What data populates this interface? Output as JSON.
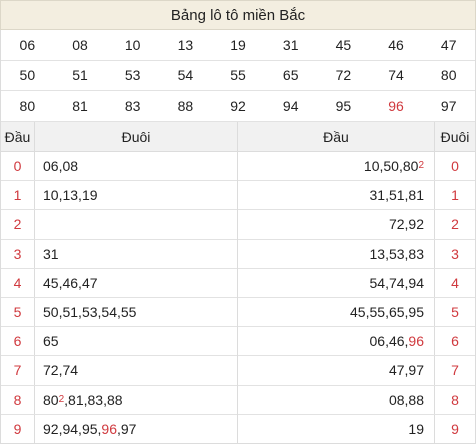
{
  "title": "Bảng lô tô miền Bắc",
  "numbers": [
    [
      "06",
      "08",
      "10",
      "13",
      "19",
      "31",
      "45",
      "46",
      "47"
    ],
    [
      "50",
      "51",
      "53",
      "54",
      "55",
      "65",
      "72",
      "74",
      "80"
    ],
    [
      "80",
      "81",
      "83",
      "88",
      "92",
      "94",
      "95",
      "96",
      "97"
    ]
  ],
  "highlight_numbers": [
    "96"
  ],
  "headers": {
    "dau": "Đầu",
    "duoi": "Đuôi"
  },
  "left_rows": [
    {
      "d": "0",
      "t": [
        {
          "v": "06"
        },
        {
          "v": "08"
        }
      ]
    },
    {
      "d": "1",
      "t": [
        {
          "v": "10"
        },
        {
          "v": "13"
        },
        {
          "v": "19"
        }
      ]
    },
    {
      "d": "2",
      "t": []
    },
    {
      "d": "3",
      "t": [
        {
          "v": "31"
        }
      ]
    },
    {
      "d": "4",
      "t": [
        {
          "v": "45"
        },
        {
          "v": "46"
        },
        {
          "v": "47"
        }
      ]
    },
    {
      "d": "5",
      "t": [
        {
          "v": "50"
        },
        {
          "v": "51"
        },
        {
          "v": "53"
        },
        {
          "v": "54"
        },
        {
          "v": "55"
        }
      ]
    },
    {
      "d": "6",
      "t": [
        {
          "v": "65"
        }
      ]
    },
    {
      "d": "7",
      "t": [
        {
          "v": "72"
        },
        {
          "v": "74"
        }
      ]
    },
    {
      "d": "8",
      "t": [
        {
          "v": "80",
          "sup": "2"
        },
        {
          "v": "81"
        },
        {
          "v": "83"
        },
        {
          "v": "88"
        }
      ]
    },
    {
      "d": "9",
      "t": [
        {
          "v": "92"
        },
        {
          "v": "94"
        },
        {
          "v": "95"
        },
        {
          "v": "96",
          "red": true
        },
        {
          "v": "97"
        }
      ]
    }
  ],
  "right_rows": [
    {
      "d": "0",
      "t": [
        {
          "v": "10"
        },
        {
          "v": "50"
        },
        {
          "v": "80",
          "sup": "2"
        }
      ]
    },
    {
      "d": "1",
      "t": [
        {
          "v": "31"
        },
        {
          "v": "51"
        },
        {
          "v": "81"
        }
      ]
    },
    {
      "d": "2",
      "t": [
        {
          "v": "72"
        },
        {
          "v": "92"
        }
      ]
    },
    {
      "d": "3",
      "t": [
        {
          "v": "13"
        },
        {
          "v": "53"
        },
        {
          "v": "83"
        }
      ]
    },
    {
      "d": "4",
      "t": [
        {
          "v": "54"
        },
        {
          "v": "74"
        },
        {
          "v": "94"
        }
      ]
    },
    {
      "d": "5",
      "t": [
        {
          "v": "45"
        },
        {
          "v": "55"
        },
        {
          "v": "65"
        },
        {
          "v": "95"
        }
      ]
    },
    {
      "d": "6",
      "t": [
        {
          "v": "06"
        },
        {
          "v": "46"
        },
        {
          "v": "96",
          "red": true
        }
      ]
    },
    {
      "d": "7",
      "t": [
        {
          "v": "47"
        },
        {
          "v": "97"
        }
      ]
    },
    {
      "d": "8",
      "t": [
        {
          "v": "08"
        },
        {
          "v": "88"
        }
      ]
    },
    {
      "d": "9",
      "t": [
        {
          "v": "19"
        }
      ]
    }
  ],
  "colors": {
    "accent_red": "#d0393e",
    "title_bg": "#f3eee0",
    "header_bg": "#f1f1f1"
  }
}
